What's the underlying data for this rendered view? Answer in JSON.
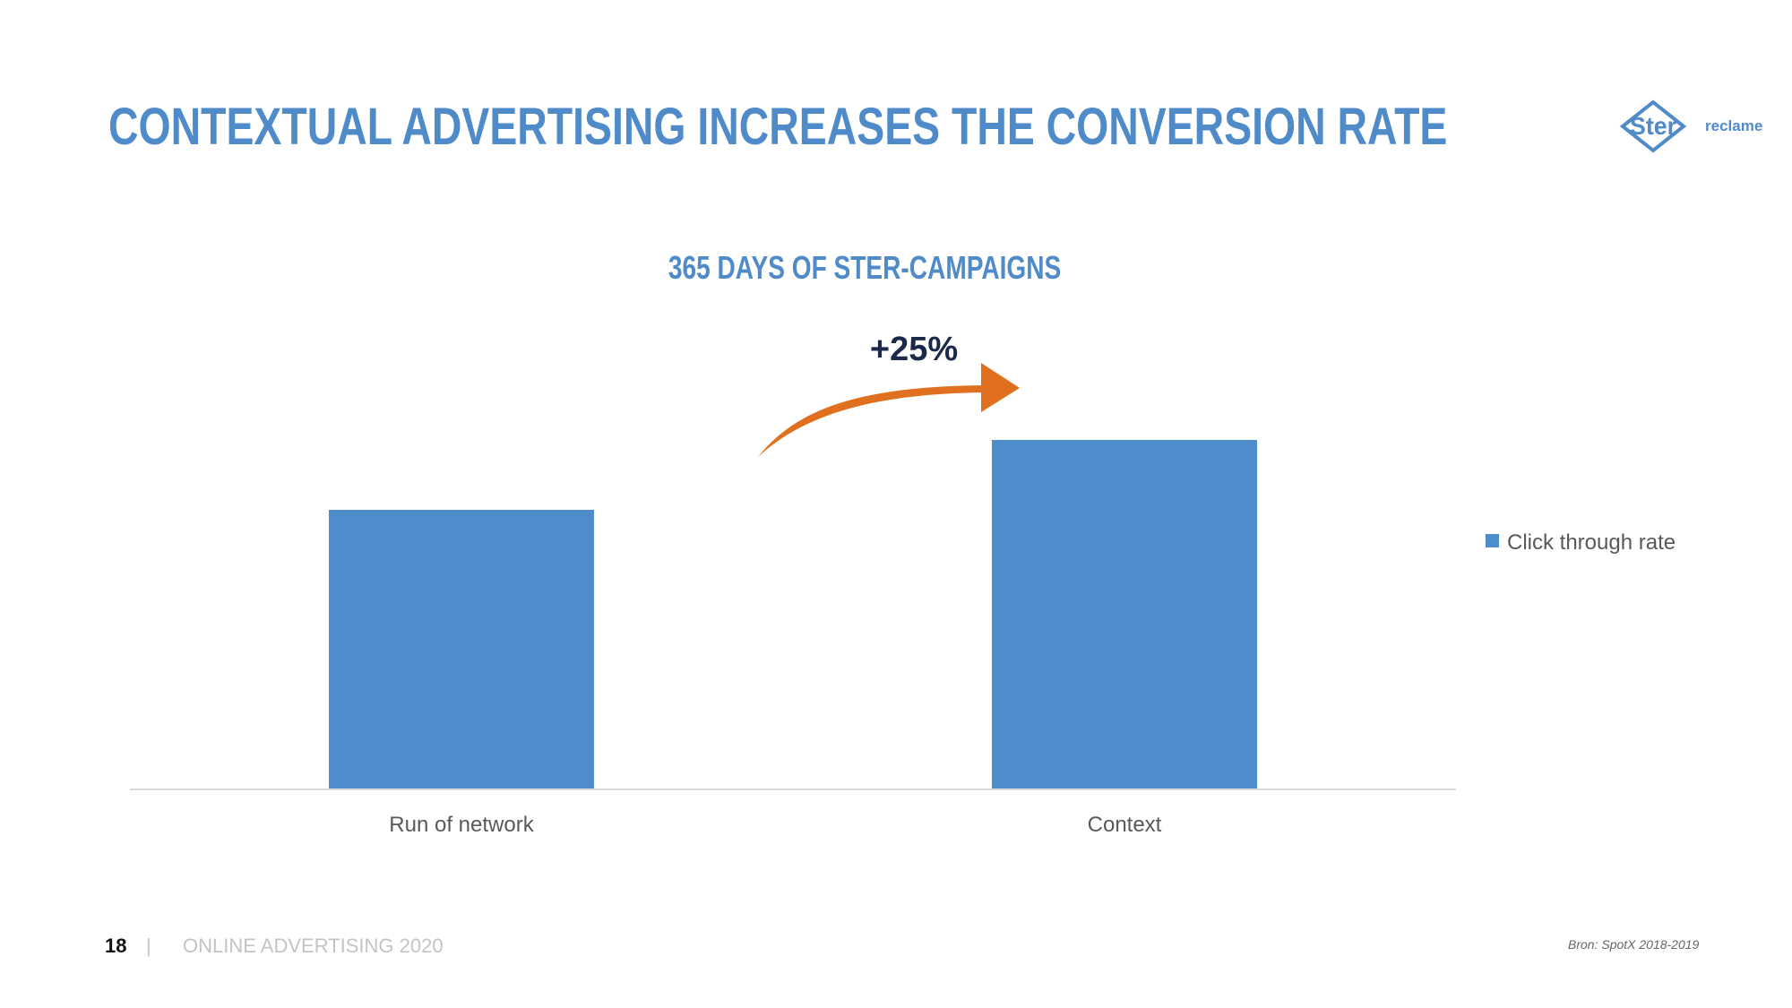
{
  "slide": {
    "title": "CONTEXTUAL ADVERTISING INCREASES THE CONVERSION RATE",
    "logo": {
      "mark": "Ster",
      "word": "reclame",
      "icon": "ster-diamond-logo-icon"
    },
    "footer": {
      "page_number": "18",
      "separator": "|",
      "label": "ONLINE ADVERTISING 2020"
    },
    "source": "Bron: SpotX 2018-2019"
  },
  "colors": {
    "accent": "#4f8ac9",
    "bar": "#4f8ccb",
    "arrow": "#e07020",
    "annotation": "#1b2a4a",
    "axis": "#d9d9d9",
    "label": "#595959"
  },
  "chart_data": {
    "type": "bar",
    "title": "365 DAYS OF STER-CAMPAIGNS",
    "categories": [
      "Run of network",
      "Context"
    ],
    "series": [
      {
        "name": "Click through rate",
        "values": [
          100,
          125
        ]
      }
    ],
    "value_note": "relative index; no y-axis values shown",
    "xlabel": "",
    "ylabel": "",
    "ylim": [
      0,
      125
    ],
    "grid": false,
    "legend": {
      "position": "right",
      "entries": [
        "Click through rate"
      ]
    },
    "annotations": [
      {
        "text": "+25%",
        "type": "curved-arrow",
        "from": "Run of network",
        "to": "Context"
      }
    ]
  }
}
